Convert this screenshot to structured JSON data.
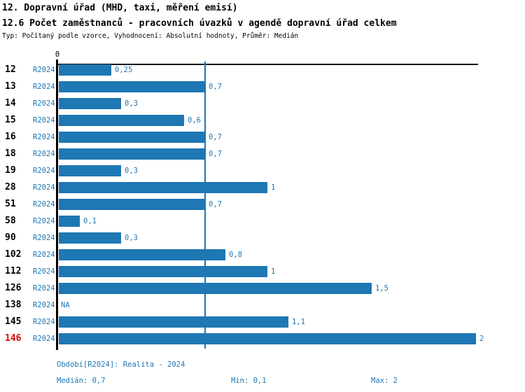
{
  "header": {
    "title1": "12. Dopravní úřad (MHD, taxi, měření emisí)",
    "title2": "12.6 Počet zaměstnanců - pracovních úvazků v agendě dopravní úřad celkem",
    "subtitle": "Typ: Počítaný podle vzorce, Vyhodnocení: Absolutní hodnoty, Průměr: Medián"
  },
  "chart_data": {
    "type": "bar",
    "orientation": "horizontal",
    "title": "12.6 Počet zaměstnanců - pracovních úvazků v agendě dopravní úřad celkem",
    "categories": [
      "12",
      "13",
      "14",
      "15",
      "16",
      "18",
      "19",
      "28",
      "51",
      "58",
      "90",
      "102",
      "112",
      "126",
      "138",
      "145",
      "146"
    ],
    "series_label": "R2024",
    "values": [
      0.25,
      0.7,
      0.3,
      0.6,
      0.7,
      0.7,
      0.3,
      1,
      0.7,
      0.1,
      0.3,
      0.8,
      1,
      1.5,
      null,
      1.1,
      2
    ],
    "value_labels": [
      "0,25",
      "0,7",
      "0,3",
      "0,6",
      "0,7",
      "0,7",
      "0,3",
      "1",
      "0,7",
      "0,1",
      "0,3",
      "0,8",
      "1",
      "1,5",
      "NA",
      "1,1",
      "2"
    ],
    "xlabel": "",
    "ylabel": "",
    "xlim": [
      0,
      2
    ],
    "x_ticks": [
      "0"
    ],
    "grid": false,
    "median_line_value": 0.7,
    "highlight_category": "146",
    "colors": {
      "bar": "#1f77b4",
      "highlight": "#e00000",
      "axis": "#000000"
    }
  },
  "footer": {
    "period": "Období[R2024]: Realita - 2024",
    "median": "Medián: 0,7",
    "min": "Min: 0,1",
    "max": "Max: 2"
  }
}
